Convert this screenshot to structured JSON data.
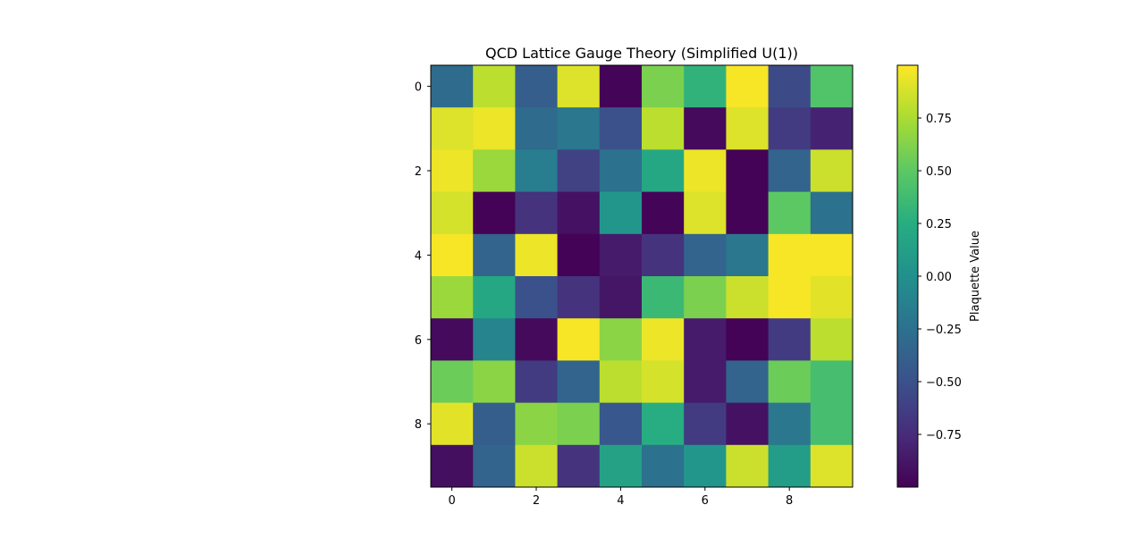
{
  "chart_data": {
    "type": "heatmap",
    "title": "QCD Lattice Gauge Theory (Simplified U(1))",
    "xlabel": "",
    "ylabel": "",
    "colorbar_label": "Plaquette Value",
    "colormap": "viridis",
    "vmin": -1.0,
    "vmax": 1.0,
    "x_ticks": [
      0,
      2,
      4,
      6,
      8
    ],
    "y_ticks": [
      0,
      2,
      4,
      6,
      8
    ],
    "colorbar_ticks": [
      0.75,
      0.5,
      0.25,
      0.0,
      -0.25,
      -0.5,
      -0.75
    ],
    "colorbar_tick_labels": [
      "0.75",
      "0.50",
      "0.25",
      "0.00",
      "−0.25",
      "−0.50",
      "−0.75"
    ],
    "grid": false,
    "values": [
      [
        -0.3,
        0.8,
        -0.4,
        0.9,
        -0.98,
        0.6,
        0.3,
        0.98,
        -0.55,
        0.45
      ],
      [
        0.9,
        0.95,
        -0.3,
        -0.2,
        -0.5,
        0.8,
        -0.95,
        0.9,
        -0.65,
        -0.8
      ],
      [
        0.95,
        0.7,
        -0.15,
        -0.6,
        -0.25,
        0.2,
        0.95,
        -0.99,
        -0.35,
        0.85
      ],
      [
        0.88,
        -0.99,
        -0.7,
        -0.9,
        0.05,
        -0.98,
        0.9,
        -0.99,
        0.5,
        -0.25
      ],
      [
        0.98,
        -0.35,
        0.95,
        -0.99,
        -0.85,
        -0.7,
        -0.35,
        -0.2,
        0.98,
        0.98
      ],
      [
        0.7,
        0.2,
        -0.5,
        -0.7,
        -0.88,
        0.35,
        0.6,
        0.85,
        0.98,
        0.92
      ],
      [
        -0.95,
        -0.1,
        -0.95,
        0.98,
        0.65,
        0.95,
        -0.85,
        -0.99,
        -0.65,
        0.8
      ],
      [
        0.55,
        0.65,
        -0.65,
        -0.35,
        0.8,
        0.88,
        -0.85,
        -0.35,
        0.55,
        0.4
      ],
      [
        0.92,
        -0.4,
        0.65,
        0.6,
        -0.45,
        0.25,
        -0.65,
        -0.9,
        -0.2,
        0.4
      ],
      [
        -0.92,
        -0.35,
        0.85,
        -0.7,
        0.15,
        -0.25,
        0.05,
        0.85,
        0.1,
        0.9
      ]
    ]
  }
}
